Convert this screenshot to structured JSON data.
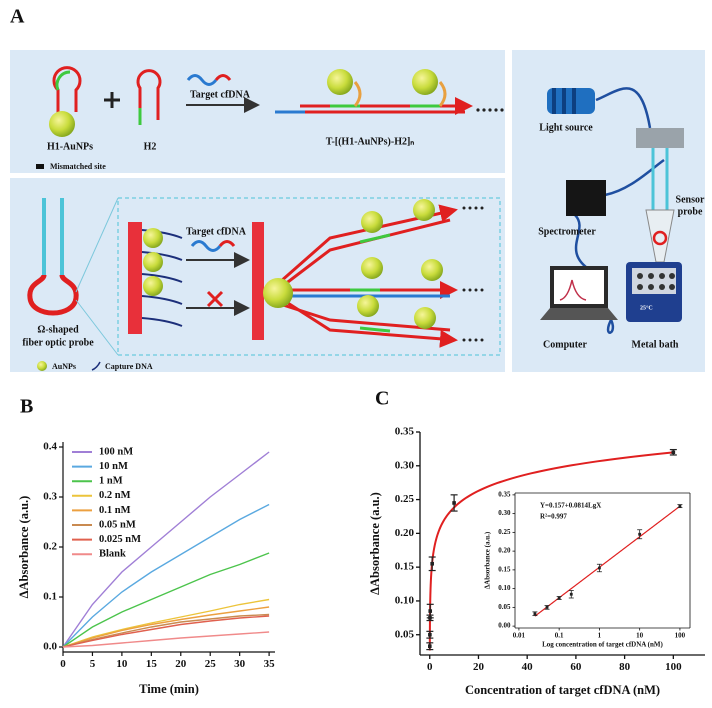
{
  "panel_labels": [
    "A",
    "B",
    "C"
  ],
  "diagram": {
    "top": {
      "h1": "H1-AuNPs",
      "h2": "H2",
      "target": "Target cfDNA",
      "product": "T-[(H1-AuNPs)-H2]ₙ",
      "mismatch": "Mismatched site"
    },
    "bottom": {
      "target": "Target cfDNA",
      "probe": [
        "Ω-shaped",
        "fiber optic probe"
      ],
      "aunps": "AuNPs",
      "capture": "Capture DNA"
    },
    "setup": {
      "light": "Light source",
      "spectrometer": "Spectrometer",
      "sensor": [
        "Sensor",
        "probe"
      ],
      "computer": "Computer",
      "bath": "Metal bath",
      "temp": "25°C"
    }
  },
  "chart_data": [
    {
      "type": "line",
      "x_label": "Time (min)",
      "y_label": "ΔAbsorbance (a.u.)",
      "x": [
        0,
        5,
        10,
        15,
        20,
        25,
        30,
        35
      ],
      "xlim": [
        0,
        36
      ],
      "xticks": [
        0,
        5,
        10,
        15,
        20,
        25,
        30,
        35
      ],
      "ylim": [
        -0.01,
        0.41
      ],
      "yticks": [
        {
          "value": 0,
          "label": "0.0"
        },
        0.1,
        0.2,
        0.3,
        0.4
      ],
      "legend": "upper left",
      "series": [
        {
          "name": "100 nM",
          "color": "#a07fd6",
          "values": [
            0,
            0.085,
            0.15,
            0.2,
            0.25,
            0.3,
            0.345,
            0.39
          ]
        },
        {
          "name": "10 nM",
          "color": "#5aa9e0",
          "values": [
            0,
            0.06,
            0.11,
            0.15,
            0.185,
            0.22,
            0.255,
            0.285
          ]
        },
        {
          "name": "1 nM",
          "color": "#4cc44c",
          "values": [
            0,
            0.04,
            0.07,
            0.095,
            0.12,
            0.145,
            0.165,
            0.188
          ]
        },
        {
          "name": "0.2 nM",
          "color": "#ecc43a",
          "values": [
            0,
            0.02,
            0.035,
            0.048,
            0.06,
            0.072,
            0.085,
            0.095
          ]
        },
        {
          "name": "0.1 nM",
          "color": "#eca040",
          "values": [
            0,
            0.018,
            0.033,
            0.045,
            0.055,
            0.064,
            0.072,
            0.08
          ]
        },
        {
          "name": "0.05 nM",
          "color": "#c98a50",
          "values": [
            0,
            0.015,
            0.028,
            0.04,
            0.05,
            0.056,
            0.062,
            0.065
          ]
        },
        {
          "name": "0.025 nM",
          "color": "#e0604e",
          "values": [
            0,
            0.013,
            0.025,
            0.035,
            0.045,
            0.052,
            0.058,
            0.062
          ]
        },
        {
          "name": "Blank",
          "color": "#f08a8a",
          "values": [
            0,
            0.003,
            0.008,
            0.013,
            0.018,
            0.022,
            0.026,
            0.03
          ]
        }
      ]
    },
    {
      "type": "scatter",
      "x_label": "Concentration of target cfDNA (nM)",
      "y_label": "ΔAbsorbance (a.u.)",
      "color": "#e02020",
      "x": [
        0.025,
        0.05,
        0.1,
        0.2,
        1,
        10,
        100
      ],
      "values": [
        0.033,
        0.05,
        0.075,
        0.085,
        0.155,
        0.245,
        0.32
      ],
      "errors": [
        0.005,
        0.005,
        0.004,
        0.01,
        0.01,
        0.012,
        0.004
      ],
      "fit": {
        "label": "Y=0.157+0.0814LgX",
        "intercept": 0.157,
        "slope": 0.0814,
        "r2_label": "R²=0.997"
      },
      "xlim": [
        -4,
        113
      ],
      "xticks": [
        0,
        20,
        40,
        60,
        80,
        100
      ],
      "ylim": [
        0.02,
        0.35
      ],
      "yticks": [
        0.05,
        {
          "value": 0.1,
          "label": "0.10"
        },
        0.15,
        {
          "value": 0.2,
          "label": "0.20"
        },
        0.25,
        {
          "value": 0.3,
          "label": "0.30"
        },
        0.35
      ],
      "inset": {
        "x_label": "Log concentration of  target cfDNA (nM)",
        "y_label": "ΔAbsorbance (a.u.)",
        "log_x": true,
        "xlim": [
          0.008,
          178
        ],
        "xticks": [
          0.01,
          0.1,
          1,
          10,
          100
        ],
        "ylim": [
          -0.005,
          0.355
        ],
        "yticks": [
          {
            "value": 0,
            "label": "0.00"
          },
          0.05,
          {
            "value": 0.1,
            "label": "0.10"
          },
          0.15,
          {
            "value": 0.2,
            "label": "0.20"
          },
          0.25,
          {
            "value": 0.3,
            "label": "0.30"
          },
          0.35
        ]
      }
    }
  ]
}
